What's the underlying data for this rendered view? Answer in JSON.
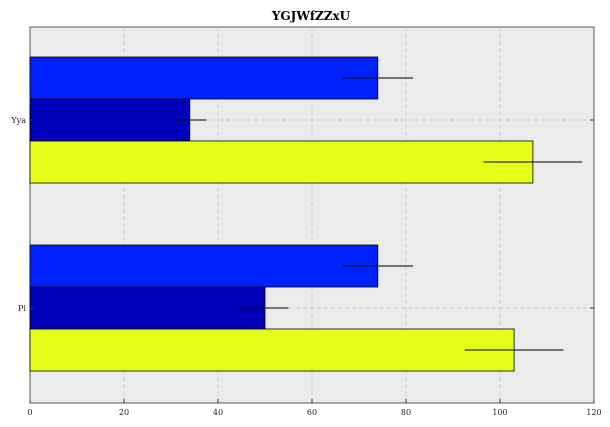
{
  "chart_data": {
    "type": "bar",
    "orientation": "horizontal",
    "title": "YGJWfZZxU",
    "xlabel": "",
    "ylabel": "",
    "categories": [
      "Yya",
      "Pi"
    ],
    "xlim": [
      0,
      120
    ],
    "xticks": [
      0,
      20,
      40,
      60,
      80,
      100,
      120
    ],
    "grid": true,
    "series": [
      {
        "color": "#0022ff",
        "values": [
          74,
          74
        ],
        "errors": [
          7.5,
          7.5
        ]
      },
      {
        "color": "#0000bb",
        "values": [
          34,
          50
        ],
        "errors": [
          3.5,
          5
        ]
      },
      {
        "color": "#e5ff1a",
        "values": [
          107,
          103
        ],
        "errors": [
          10.5,
          10.5
        ]
      }
    ]
  }
}
